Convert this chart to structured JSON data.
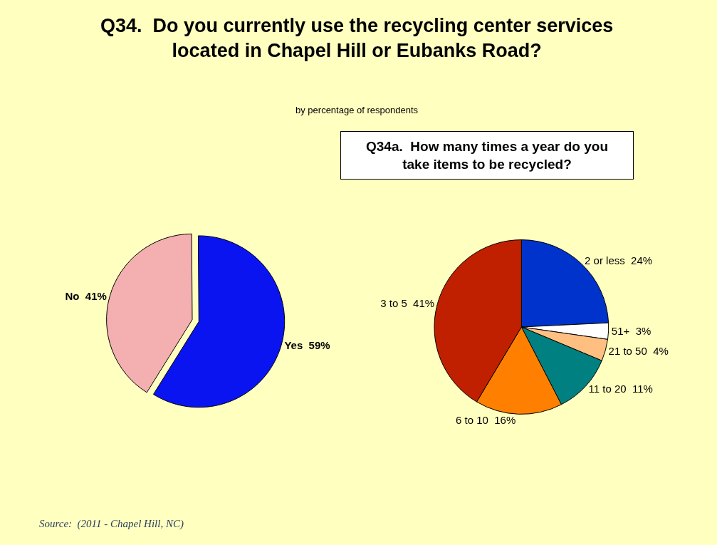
{
  "chart_data": [
    {
      "type": "pie",
      "title": "Q34.  Do you currently use the recycling center services\nlocated in Chapel Hill or Eubanks Road?",
      "subtitle": "by percentage of respondents",
      "categories": [
        "No",
        "Yes"
      ],
      "values": [
        41,
        59
      ],
      "colors": [
        "#f4b0b0",
        "#0a14f0"
      ],
      "value_labels": [
        "41%",
        "59%"
      ],
      "legend": false,
      "annotations": [
        "Source:  (2011 - Chapel Hill, NC)"
      ]
    },
    {
      "type": "pie",
      "title": "Q34a.  How many times a year do you\ntake items to be recycled?",
      "categories": [
        "2 or less",
        "51+",
        "21 to 50",
        "11 to 20",
        "6 to 10",
        "3 to 5"
      ],
      "values": [
        24,
        3,
        4,
        11,
        16,
        41
      ],
      "colors": [
        "#0033cc",
        "#ffffff",
        "#ffbf80",
        "#008080",
        "#ff8000",
        "#c02000"
      ],
      "value_labels": [
        "24%",
        "3%",
        "4%",
        "11%",
        "16%",
        "41%"
      ],
      "legend": false
    }
  ]
}
